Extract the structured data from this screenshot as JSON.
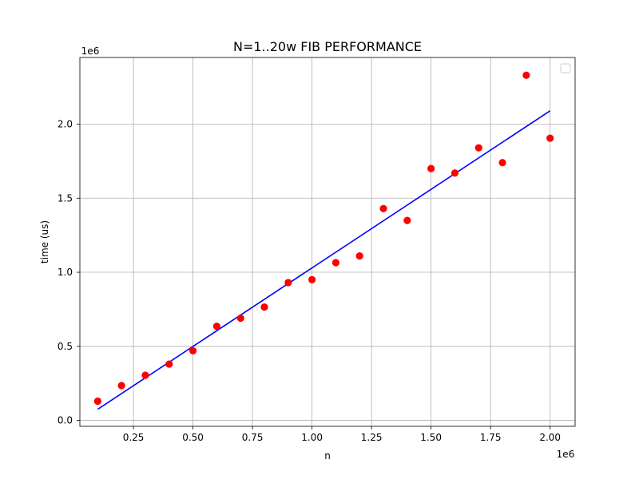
{
  "chart_data": {
    "type": "scatter",
    "title": "N=1..20w FIB PERFORMANCE",
    "xlabel": "n",
    "ylabel": "time (us)",
    "x_offset_label": "1e6",
    "y_offset_label": "1e6",
    "xlim": [
      0.025,
      2.105
    ],
    "ylim": [
      -0.04,
      2.45
    ],
    "x_ticks": [
      0.25,
      0.5,
      0.75,
      1.0,
      1.25,
      1.5,
      1.75,
      2.0
    ],
    "x_tick_labels": [
      "0.25",
      "0.50",
      "0.75",
      "1.00",
      "1.25",
      "1.50",
      "1.75",
      "2.00"
    ],
    "y_ticks": [
      0.0,
      0.5,
      1.0,
      1.5,
      2.0
    ],
    "y_tick_labels": [
      "0.0",
      "0.5",
      "1.0",
      "1.5",
      "2.0"
    ],
    "grid": true,
    "legend_placement": "upper right",
    "series": [
      {
        "kind": "scatter",
        "color": "#ff0000",
        "x": [
          0.1,
          0.2,
          0.3,
          0.4,
          0.5,
          0.6,
          0.7,
          0.8,
          0.9,
          1.0,
          1.1,
          1.2,
          1.3,
          1.4,
          1.5,
          1.6,
          1.7,
          1.8,
          1.9,
          2.0
        ],
        "y": [
          0.13,
          0.235,
          0.305,
          0.38,
          0.47,
          0.635,
          0.69,
          0.765,
          0.93,
          0.95,
          1.065,
          1.11,
          1.43,
          1.35,
          1.7,
          1.67,
          1.84,
          1.74,
          2.33,
          1.905
        ]
      },
      {
        "kind": "line",
        "color": "#0000ff",
        "x": [
          0.1,
          2.0
        ],
        "y": [
          0.075,
          2.09
        ]
      }
    ]
  }
}
